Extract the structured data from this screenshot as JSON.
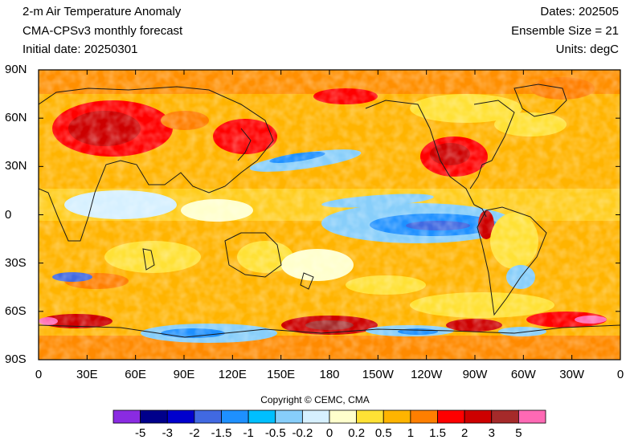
{
  "header": {
    "title": "2-m Air Temperature Anomaly",
    "model": "CMA-CPSv3 monthly forecast",
    "initial_date": "Initial date: 20250301",
    "dates": "Dates: 202505",
    "ensemble": "Ensemble Size = 21",
    "units": "Units: degC"
  },
  "axes": {
    "lat_labels": [
      "90N",
      "60N",
      "30N",
      "0",
      "30S",
      "60S",
      "90S"
    ],
    "lon_labels": [
      "0",
      "30E",
      "60E",
      "90E",
      "120E",
      "150E",
      "180",
      "150W",
      "120W",
      "90W",
      "60W",
      "30W",
      "0"
    ]
  },
  "copyright": "Copyright © CEMC, CMA",
  "colorbar": {
    "colors": [
      "#8a2be2",
      "#00008b",
      "#0000cd",
      "#4169e1",
      "#1e90ff",
      "#00bfff",
      "#87cefa",
      "#d6f0ff",
      "#ffffcc",
      "#ffe135",
      "#ffb400",
      "#ff7f00",
      "#ff0000",
      "#cd0000",
      "#a52a2a",
      "#ff69b4"
    ],
    "labels": [
      "-5",
      "-3",
      "-2",
      "-1.5",
      "-1",
      "-0.5",
      "-0.2",
      "0",
      "0.2",
      "0.5",
      "1",
      "1.5",
      "2",
      "3",
      "5"
    ]
  }
}
